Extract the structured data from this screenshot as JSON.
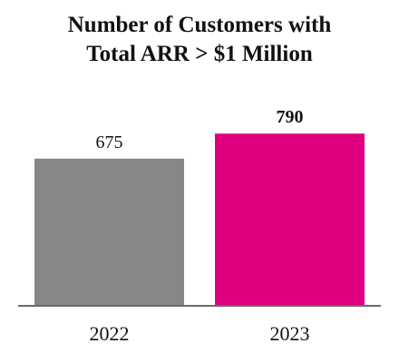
{
  "chart_data": {
    "type": "bar",
    "title_lines": [
      "Number of Customers with",
      "Total ARR > $1 Million"
    ],
    "categories": [
      "2022",
      "2023"
    ],
    "values": [
      675,
      790
    ],
    "data_labels": [
      "675",
      "790"
    ],
    "bar_colors": [
      "#878787",
      "#E0007F"
    ],
    "data_label_bold": [
      false,
      true
    ],
    "axis_color": "#6b6b6b",
    "ylim": [
      0,
      820
    ],
    "xlabel": "",
    "ylabel": "",
    "grid": false,
    "legend": "none"
  }
}
